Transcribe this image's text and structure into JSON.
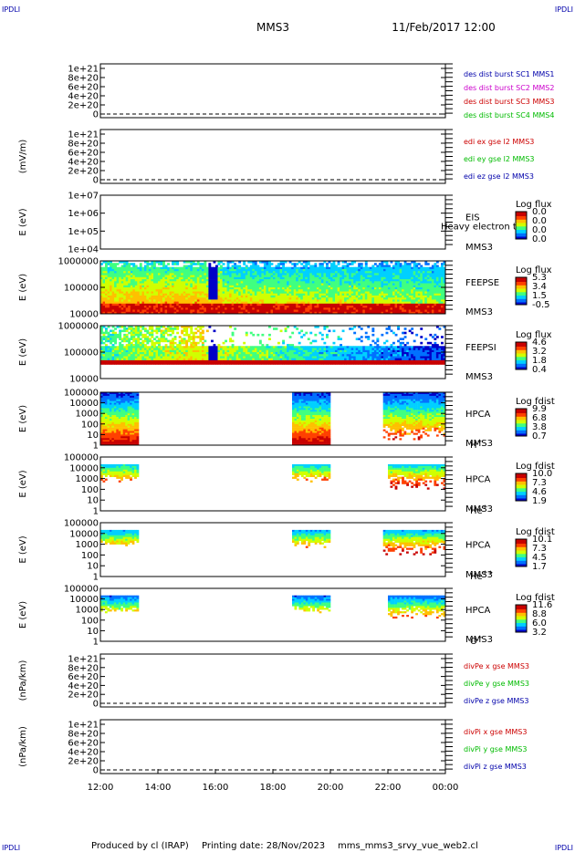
{
  "header": {
    "corner_label": "IPDLI",
    "spacecraft": "MMS3",
    "datetime": "11/Feb/2017 12:00"
  },
  "footer": {
    "produced_by": "Produced by cl (IRAP)",
    "printing_date": "Printing date: 28/Nov/2023",
    "script_name": "mms_mms3_srvy_vue_web2.cl"
  },
  "colors": {
    "mms1": "#0000aa",
    "mms2": "#cc00cc",
    "mms3": "#cc0000",
    "mms4": "#00bb00",
    "x_comp": "#cc0000",
    "y_comp": "#00bb00",
    "z_comp": "#0000aa",
    "colormap": [
      "#0000c8",
      "#0070ff",
      "#00d0ff",
      "#40ff80",
      "#d0ff00",
      "#ffc000",
      "#ff4000",
      "#c80000"
    ]
  },
  "chart_data": {
    "type": "heatmap",
    "x_ticks": [
      "12:00",
      "14:00",
      "16:00",
      "18:00",
      "20:00",
      "22:00",
      "00:00"
    ],
    "panels": [
      {
        "id": "des-dist",
        "type": "line",
        "ylabel": "",
        "yticks": [
          "1e+21",
          "8e+20",
          "6e+20",
          "4e+20",
          "2e+20",
          "0"
        ],
        "legend": [
          {
            "text": "des dist burst SC1 MMS1",
            "color": "mms1"
          },
          {
            "text": "des dist burst SC2 MMS2",
            "color": "mms2"
          },
          {
            "text": "des dist burst SC3 MMS3",
            "color": "mms3"
          },
          {
            "text": "des dist burst SC4 MMS4",
            "color": "mms4"
          }
        ]
      },
      {
        "id": "edi",
        "type": "line",
        "ylabel": "(mV/m)",
        "yticks": [
          "1e+21",
          "8e+20",
          "6e+20",
          "4e+20",
          "2e+20",
          "0"
        ],
        "legend": [
          {
            "text": "edi ex gse l2 MMS3",
            "color": "x_comp"
          },
          {
            "text": "edi ey gse l2 MMS3",
            "color": "y_comp"
          },
          {
            "text": "edi ez gse l2 MMS3",
            "color": "z_comp"
          }
        ]
      },
      {
        "id": "eis",
        "type": "heatmap",
        "ylabel": "E (eV)",
        "yticks": [
          "1e+07",
          "1e+06",
          "1e+05",
          "1e+04"
        ],
        "labels": [
          "EIS",
          "MMS3"
        ],
        "overlap_text": "Heavy electron to",
        "colorbar": {
          "title": "Log flux",
          "ticks": [
            "0.0",
            "0.0",
            "0.0",
            "0.0"
          ]
        }
      },
      {
        "id": "feepse",
        "type": "heatmap",
        "ylabel": "E (eV)",
        "yticks": [
          "1000000",
          "100000",
          "10000"
        ],
        "labels": [
          "FEEPSE",
          "MMS3"
        ],
        "colorbar": {
          "title": "Log flux",
          "ticks": [
            "5.3",
            "3.4",
            "1.5",
            "-0.5"
          ]
        }
      },
      {
        "id": "feepsi",
        "type": "heatmap",
        "ylabel": "E (eV)",
        "yticks": [
          "1000000",
          "100000",
          "10000"
        ],
        "labels": [
          "FEEPSI",
          "MMS3"
        ],
        "colorbar": {
          "title": "Log flux",
          "ticks": [
            "4.6",
            "3.2",
            "1.8",
            "0.4"
          ]
        }
      },
      {
        "id": "hpca-h",
        "type": "heatmap",
        "ylabel": "E (eV)",
        "yticks": [
          "100000",
          "10000",
          "1000",
          "100",
          "10",
          "1"
        ],
        "labels": [
          "HPCA",
          "MMS3"
        ],
        "species": "H",
        "charge": "+",
        "colorbar": {
          "title": "Log fdist",
          "ticks": [
            "9.9",
            "6.8",
            "3.8",
            "0.7"
          ]
        },
        "data_intervals": [
          [
            "12:00",
            "13:20"
          ],
          [
            "18:40",
            "20:00"
          ],
          [
            "21:50",
            "00:00"
          ]
        ]
      },
      {
        "id": "hpca-he",
        "type": "heatmap",
        "ylabel": "E (eV)",
        "yticks": [
          "100000",
          "10000",
          "1000",
          "100",
          "10",
          "1"
        ],
        "labels": [
          "HPCA",
          "MMS3"
        ],
        "species": "He",
        "charge": "+",
        "colorbar": {
          "title": "Log fdist",
          "ticks": [
            "10.0",
            "7.3",
            "4.6",
            "1.9"
          ]
        },
        "data_intervals": [
          [
            "12:00",
            "13:20"
          ],
          [
            "18:40",
            "20:00"
          ],
          [
            "22:00",
            "00:00"
          ]
        ]
      },
      {
        "id": "hpca-he2",
        "type": "heatmap",
        "ylabel": "E (eV)",
        "yticks": [
          "100000",
          "10000",
          "1000",
          "100",
          "10",
          "1"
        ],
        "labels": [
          "HPCA",
          "MMS3"
        ],
        "species": "He",
        "charge": "++",
        "colorbar": {
          "title": "Log fdist",
          "ticks": [
            "10.1",
            "7.3",
            "4.5",
            "1.7"
          ]
        },
        "data_intervals": [
          [
            "12:00",
            "13:20"
          ],
          [
            "18:40",
            "20:00"
          ],
          [
            "21:50",
            "00:00"
          ]
        ]
      },
      {
        "id": "hpca-o",
        "type": "heatmap",
        "ylabel": "E (eV)",
        "yticks": [
          "100000",
          "10000",
          "1000",
          "100",
          "10",
          "1"
        ],
        "labels": [
          "HPCA",
          "MMS3"
        ],
        "species": "O",
        "charge": "+",
        "colorbar": {
          "title": "Log fdist",
          "ticks": [
            "11.6",
            "8.8",
            "6.0",
            "3.2"
          ]
        },
        "data_intervals": [
          [
            "12:00",
            "13:20"
          ],
          [
            "18:40",
            "20:00"
          ],
          [
            "22:00",
            "00:00"
          ]
        ]
      },
      {
        "id": "divpe",
        "type": "line",
        "ylabel": "(nPa/km)",
        "yticks": [
          "1e+21",
          "8e+20",
          "6e+20",
          "4e+20",
          "2e+20",
          "0"
        ],
        "legend": [
          {
            "text": "divPe x gse MMS3",
            "color": "x_comp"
          },
          {
            "text": "divPe y gse MMS3",
            "color": "y_comp"
          },
          {
            "text": "divPe z gse MMS3",
            "color": "z_comp"
          }
        ]
      },
      {
        "id": "divpi",
        "type": "line",
        "ylabel": "(nPa/km)",
        "yticks": [
          "1e+21",
          "8e+20",
          "6e+20",
          "4e+20",
          "2e+20",
          "0"
        ],
        "legend": [
          {
            "text": "divPi x gse MMS3",
            "color": "x_comp"
          },
          {
            "text": "divPi y gse MMS3",
            "color": "y_comp"
          },
          {
            "text": "divPi z gse MMS3",
            "color": "z_comp"
          }
        ]
      }
    ]
  }
}
